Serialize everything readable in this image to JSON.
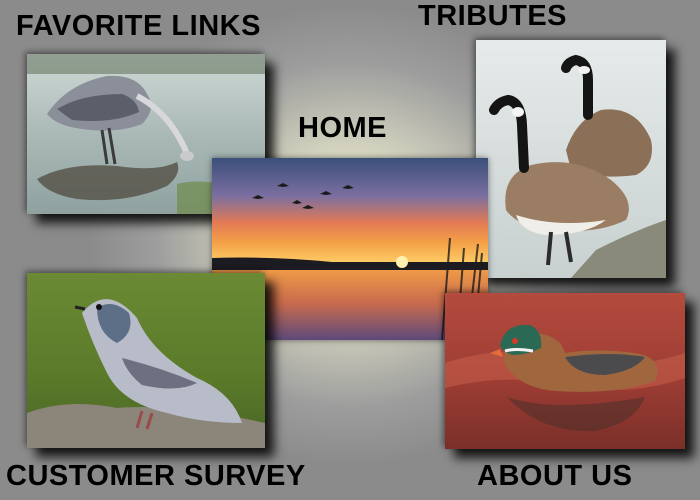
{
  "nav": {
    "favorite_links": "FAVORITE LINKS",
    "tributes": "TRIBUTES",
    "home": "HOME",
    "customer_survey": "CUSTOMER SURVEY",
    "about_us": "ABOUT US"
  },
  "images": {
    "heron": "heron-photo",
    "geese": "canada-geese-photo",
    "sunset": "geese-sunset-photo",
    "pigeon": "pigeon-photo",
    "duck": "wood-duck-photo"
  }
}
